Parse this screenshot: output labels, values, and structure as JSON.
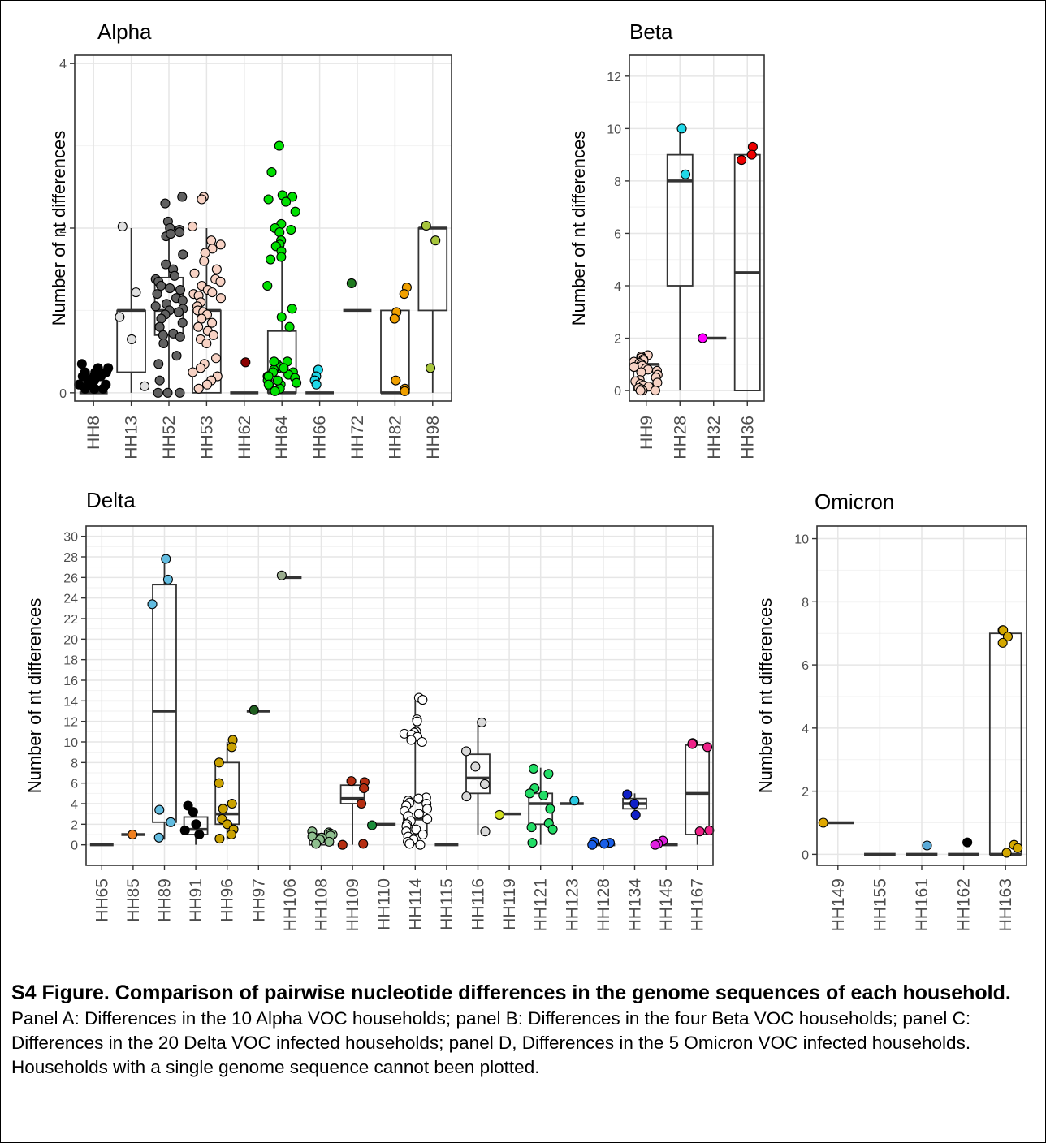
{
  "caption": {
    "title": "S4 Figure. Comparison of pairwise nucleotide differences in the genome sequences of each household.",
    "body": "Panel A: Differences in the 10 Alpha VOC households; panel B: Differences in the four Beta VOC households; panel C: Differences in the 20 Delta VOC infected households; panel D, Differences in the 5 Omicron VOC infected households. Households with a single genome sequence cannot been plotted."
  },
  "chart_data": [
    {
      "type": "boxplot",
      "title": "Alpha",
      "ylabel": "Number of nt differences",
      "ylim": [
        -0.1,
        4.1
      ],
      "yticks": [
        0,
        2,
        4
      ],
      "categories": [
        "HH8",
        "HH13",
        "HH52",
        "HH53",
        "HH62",
        "HH64",
        "HH66",
        "HH72",
        "HH82",
        "HH98"
      ],
      "boxes": [
        {
          "q1": 0,
          "median": 0,
          "q3": 0,
          "whisker_low": 0,
          "whisker_high": 0
        },
        {
          "q1": 0.25,
          "median": 1,
          "q3": 1,
          "whisker_low": 0,
          "whisker_high": 2
        },
        {
          "q1": 0.7,
          "median": 1,
          "q3": 1.4,
          "whisker_low": 0,
          "whisker_high": 2
        },
        {
          "q1": 0,
          "median": 1,
          "q3": 1,
          "whisker_low": 0,
          "whisker_high": 2
        },
        {
          "q1": 0,
          "median": 0,
          "q3": 0,
          "whisker_low": 0,
          "whisker_high": 0
        },
        {
          "q1": 0,
          "median": 0,
          "q3": 0.75,
          "whisker_low": 0,
          "whisker_high": 1.8
        },
        {
          "q1": 0,
          "median": 0,
          "q3": 0,
          "whisker_low": 0,
          "whisker_high": 0
        },
        {
          "q1": 1,
          "median": 1,
          "q3": 1,
          "whisker_low": 1,
          "whisker_high": 1
        },
        {
          "q1": 0,
          "median": 0,
          "q3": 1,
          "whisker_low": 0,
          "whisker_high": 1
        },
        {
          "q1": 1,
          "median": 2,
          "q3": 2,
          "whisker_low": 0,
          "whisker_high": 2
        }
      ],
      "points": [
        {
          "category": "HH8",
          "color": "#000000",
          "values": [
            0.35,
            0.1,
            0.2,
            0.15,
            0.05,
            0.25,
            0.3,
            0.2,
            0.1,
            0.05,
            0.15,
            0.25,
            0.2,
            0.1,
            0.3,
            0.05,
            0.15,
            0.2,
            0.1,
            0.25,
            0.05,
            0.2
          ]
        },
        {
          "category": "HH13",
          "color": "#e0e0e0",
          "values": [
            2.02,
            1.22,
            0.92,
            0.65,
            0.08
          ]
        },
        {
          "category": "HH52",
          "color": "#606060",
          "values": [
            2.38,
            2.3,
            2.08,
            2.0,
            1.98,
            1.95,
            1.9,
            1.93,
            1.68,
            1.56,
            1.5,
            1.42,
            1.38,
            1.35,
            1.3,
            1.27,
            1.25,
            1.2,
            1.15,
            1.12,
            1.08,
            1.05,
            1.02,
            1.0,
            0.98,
            0.95,
            0.9,
            0.85,
            0.8,
            0.72,
            0.7,
            0.68,
            0.6,
            0.45,
            0.35,
            0.15,
            0.0,
            0.0,
            0.0
          ]
        },
        {
          "category": "HH53",
          "color": "#f7d2c4",
          "values": [
            2.38,
            2.35,
            2.02,
            1.85,
            1.8,
            1.75,
            1.7,
            1.6,
            1.5,
            1.45,
            1.38,
            1.35,
            1.3,
            1.25,
            1.22,
            1.2,
            1.18,
            1.15,
            1.1,
            1.05,
            1.0,
            0.98,
            0.95,
            0.9,
            0.85,
            0.8,
            0.75,
            0.7,
            0.65,
            0.6,
            0.42,
            0.35,
            0.3,
            0.25,
            0.2,
            0.15,
            0.1,
            0.05
          ]
        },
        {
          "category": "HH62",
          "color": "#8b0000",
          "values": [
            0.37
          ]
        },
        {
          "category": "HH64",
          "color": "#00e000",
          "values": [
            3.0,
            2.68,
            2.4,
            2.38,
            2.35,
            2.32,
            2.2,
            2.05,
            2.0,
            1.98,
            1.95,
            1.85,
            1.8,
            1.78,
            1.72,
            1.65,
            1.62,
            1.3,
            1.02,
            0.92,
            0.8,
            0.38,
            0.35,
            0.32,
            0.3,
            0.28,
            0.25,
            0.22,
            0.2,
            0.18,
            0.15,
            0.12,
            0.1,
            0.08,
            0.05,
            0.02,
            0.38,
            0.3,
            0.25,
            0.2,
            0.15,
            0.1
          ]
        },
        {
          "category": "HH66",
          "color": "#20d8e8",
          "values": [
            0.28,
            0.2,
            0.15,
            0.1
          ]
        },
        {
          "category": "HH72",
          "color": "#1f7a1f",
          "values": [
            1.33
          ]
        },
        {
          "category": "HH82",
          "color": "#f0a000",
          "values": [
            1.28,
            1.2,
            0.98,
            0.9,
            0.15,
            0.05,
            0.02
          ]
        },
        {
          "category": "HH98",
          "color": "#a6c43b",
          "values": [
            2.03,
            1.85,
            0.3
          ]
        }
      ]
    },
    {
      "type": "boxplot",
      "title": "Beta",
      "ylabel": "Number of nt differences",
      "ylim": [
        -0.4,
        12.8
      ],
      "yticks": [
        0,
        2,
        4,
        6,
        8,
        10,
        12
      ],
      "categories": [
        "HH9",
        "HH28",
        "HH32",
        "HH36"
      ],
      "boxes": [
        {
          "q1": 0,
          "median": 1,
          "q3": 1,
          "whisker_low": 0,
          "whisker_high": 1
        },
        {
          "q1": 4,
          "median": 8,
          "q3": 9,
          "whisker_low": 0,
          "whisker_high": 10
        },
        {
          "q1": 2,
          "median": 2,
          "q3": 2,
          "whisker_low": 2,
          "whisker_high": 2
        },
        {
          "q1": 0,
          "median": 4.5,
          "q3": 9,
          "whisker_low": 0,
          "whisker_high": 9
        }
      ],
      "points": [
        {
          "category": "HH9",
          "color": "#f7d2c4",
          "values": [
            1.35,
            1.3,
            1.25,
            1.2,
            1.15,
            1.1,
            1.05,
            1.0,
            0.95,
            0.9,
            0.85,
            0.8,
            0.75,
            0.7,
            0.6,
            0.5,
            0.4,
            0.35,
            0.3,
            0.25,
            0.2,
            0.15,
            0.1,
            0.05,
            0.0,
            0.0,
            0.0
          ]
        },
        {
          "category": "HH28",
          "color": "#20d8e8",
          "values": [
            10.0,
            8.25
          ]
        },
        {
          "category": "HH32",
          "color": "#ff00ff",
          "values": [
            2.0
          ]
        },
        {
          "category": "HH36",
          "color": "#ee0000",
          "values": [
            9.3,
            9.0,
            8.8
          ]
        }
      ]
    },
    {
      "type": "boxplot",
      "title": "Delta",
      "ylabel": "Number of nt differences",
      "ylim": [
        -2,
        31
      ],
      "yticks": [
        0,
        2,
        4,
        6,
        8,
        10,
        12,
        14,
        16,
        18,
        20,
        22,
        24,
        26,
        28,
        30
      ],
      "categories": [
        "HH65",
        "HH85",
        "HH89",
        "HH91",
        "HH96",
        "HH97",
        "HH106",
        "HH108",
        "HH109",
        "HH110",
        "HH114",
        "HH115",
        "HH116",
        "HH119",
        "HH121",
        "HH123",
        "HH128",
        "HH134",
        "HH145",
        "HH167"
      ],
      "boxes": [
        {
          "q1": 0,
          "median": 0,
          "q3": 0,
          "whisker_low": 0,
          "whisker_high": 0
        },
        {
          "q1": 1,
          "median": 1,
          "q3": 1,
          "whisker_low": 1,
          "whisker_high": 1
        },
        {
          "q1": 2.2,
          "median": 13,
          "q3": 25.3,
          "whisker_low": 0.5,
          "whisker_high": 28
        },
        {
          "q1": 1,
          "median": 1.5,
          "q3": 2.7,
          "whisker_low": 0,
          "whisker_high": 3.5
        },
        {
          "q1": 2,
          "median": 3,
          "q3": 8,
          "whisker_low": 0.5,
          "whisker_high": 10
        },
        {
          "q1": 13,
          "median": 13,
          "q3": 13,
          "whisker_low": 13,
          "whisker_high": 13
        },
        {
          "q1": 26,
          "median": 26,
          "q3": 26,
          "whisker_low": 26,
          "whisker_high": 26
        },
        {
          "q1": 0,
          "median": 1,
          "q3": 1,
          "whisker_low": 0,
          "whisker_high": 1
        },
        {
          "q1": 4,
          "median": 4.5,
          "q3": 5.8,
          "whisker_low": 0,
          "whisker_high": 6
        },
        {
          "q1": 2,
          "median": 2,
          "q3": 2,
          "whisker_low": 2,
          "whisker_high": 2
        },
        {
          "q1": 1,
          "median": 2.5,
          "q3": 4.3,
          "whisker_low": 0,
          "whisker_high": 14
        },
        {
          "q1": 0,
          "median": 0,
          "q3": 0,
          "whisker_low": 0,
          "whisker_high": 0
        },
        {
          "q1": 5,
          "median": 6.5,
          "q3": 8.8,
          "whisker_low": 1,
          "whisker_high": 12
        },
        {
          "q1": 3,
          "median": 3,
          "q3": 3,
          "whisker_low": 3,
          "whisker_high": 3
        },
        {
          "q1": 2,
          "median": 4,
          "q3": 5,
          "whisker_low": 0,
          "whisker_high": 7.5
        },
        {
          "q1": 4,
          "median": 4,
          "q3": 4,
          "whisker_low": 4,
          "whisker_high": 4
        },
        {
          "q1": 0,
          "median": 0,
          "q3": 0,
          "whisker_low": 0,
          "whisker_high": 0
        },
        {
          "q1": 3.5,
          "median": 4,
          "q3": 4.5,
          "whisker_low": 3,
          "whisker_high": 5
        },
        {
          "q1": 0,
          "median": 0,
          "q3": 0,
          "whisker_low": 0,
          "whisker_high": 0
        },
        {
          "q1": 1,
          "median": 5,
          "q3": 9.7,
          "whisker_low": 0,
          "whisker_high": 10
        }
      ],
      "points": [
        {
          "category": "HH65",
          "color": "#1f1f1f",
          "values": []
        },
        {
          "category": "HH85",
          "color": "#f08020",
          "values": [
            1.0
          ]
        },
        {
          "category": "HH89",
          "color": "#62bce0",
          "values": [
            27.8,
            25.8,
            23.4,
            3.4,
            2.2,
            0.7
          ]
        },
        {
          "category": "HH91",
          "color": "#000000",
          "values": [
            3.8,
            3.2,
            2.0,
            1.4,
            1.0
          ]
        },
        {
          "category": "HH96",
          "color": "#c9a100",
          "values": [
            10.2,
            9.5,
            8.0,
            6.0,
            4.0,
            3.5,
            2.5,
            2.0,
            1.5,
            1.0,
            0.6
          ]
        },
        {
          "category": "HH97",
          "color": "#1f5e1f",
          "values": [
            13.1
          ]
        },
        {
          "category": "HH106",
          "color": "#9aac8e",
          "values": [
            26.2
          ]
        },
        {
          "category": "HH108",
          "color": "#8fbf8f",
          "values": [
            1.3,
            1.2,
            1.1,
            1.0,
            0.9,
            0.8,
            0.7,
            0.5,
            0.3,
            0.1
          ]
        },
        {
          "category": "HH109",
          "color": "#b52f12",
          "values": [
            6.2,
            6.1,
            5.5,
            4.0,
            0.1,
            0.0
          ]
        },
        {
          "category": "HH110",
          "color": "#1a8c3a",
          "values": [
            1.9
          ]
        },
        {
          "category": "HH114",
          "color": "#ffffff",
          "values": [
            14.3,
            14.1,
            12.2,
            12.0,
            11.0,
            10.9,
            10.8,
            10.7,
            10.5,
            10.2,
            10.0,
            4.6,
            4.5,
            4.3,
            4.1,
            4.0,
            3.8,
            3.5,
            3.3,
            3.0,
            2.8,
            2.5,
            2.3,
            2.0,
            1.8,
            1.5,
            1.3,
            1.0,
            0.8,
            0.5,
            0.3,
            0.1,
            0.0
          ]
        },
        {
          "category": "HH115",
          "color": "#1f1f1f",
          "values": []
        },
        {
          "category": "HH116",
          "color": "#d9d9d9",
          "values": [
            11.9,
            9.1,
            7.6,
            5.9,
            4.7,
            1.3
          ]
        },
        {
          "category": "HH119",
          "color": "#d2e021",
          "values": [
            2.9
          ]
        },
        {
          "category": "HH121",
          "color": "#22dd66",
          "values": [
            7.4,
            6.9,
            5.5,
            5.0,
            4.8,
            3.5,
            2.1,
            1.7,
            1.5,
            0.2
          ]
        },
        {
          "category": "HH123",
          "color": "#29c8e0",
          "values": [
            4.3
          ]
        },
        {
          "category": "HH128",
          "color": "#1a5fe8",
          "values": [
            0.3,
            0.2,
            0.1,
            0.0
          ]
        },
        {
          "category": "HH134",
          "color": "#1020c8",
          "values": [
            4.9,
            4.0,
            2.9
          ]
        },
        {
          "category": "HH145",
          "color": "#e020e0",
          "values": [
            0.4,
            0.1,
            0.0
          ]
        },
        {
          "category": "HH167",
          "color": "#ee2288",
          "values": [
            9.9,
            9.8,
            9.5,
            1.4,
            1.3
          ]
        }
      ]
    },
    {
      "type": "boxplot",
      "title": "Omicron",
      "ylabel": "Number of nt differences",
      "ylim": [
        -0.35,
        10.4
      ],
      "yticks": [
        0,
        2,
        4,
        6,
        8,
        10
      ],
      "categories": [
        "HH149",
        "HH155",
        "HH161",
        "HH162",
        "HH163"
      ],
      "boxes": [
        {
          "q1": 1,
          "median": 1,
          "q3": 1,
          "whisker_low": 1,
          "whisker_high": 1
        },
        {
          "q1": 0,
          "median": 0,
          "q3": 0,
          "whisker_low": 0,
          "whisker_high": 0
        },
        {
          "q1": 0,
          "median": 0,
          "q3": 0,
          "whisker_low": 0,
          "whisker_high": 0
        },
        {
          "q1": 0,
          "median": 0,
          "q3": 0,
          "whisker_low": 0,
          "whisker_high": 0
        },
        {
          "q1": 0,
          "median": 0,
          "q3": 7,
          "whisker_low": 0,
          "whisker_high": 7
        }
      ],
      "points": [
        {
          "category": "HH149",
          "color": "#e0a800",
          "values": [
            1.0
          ]
        },
        {
          "category": "HH155",
          "color": "#1f1f1f",
          "values": []
        },
        {
          "category": "HH161",
          "color": "#5aaad8",
          "values": [
            0.28
          ]
        },
        {
          "category": "HH162",
          "color": "#000000",
          "values": [
            0.38
          ]
        },
        {
          "category": "HH163",
          "color": "#d4a800",
          "values": [
            7.1,
            7.1,
            6.9,
            6.7,
            0.3,
            0.2,
            0.05
          ]
        }
      ]
    }
  ]
}
